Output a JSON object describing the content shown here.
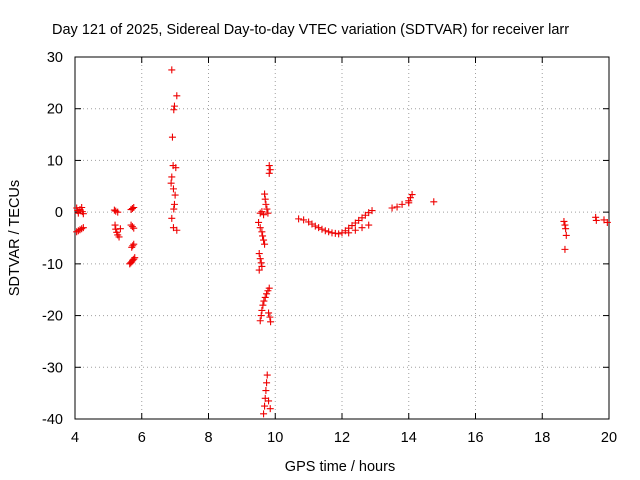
{
  "chart_data": {
    "type": "scatter",
    "title": "Day 121 of 2025, Sidereal Day-to-day VTEC variation (SDTVAR) for receiver larr",
    "xlabel": "GPS time / hours",
    "ylabel": "SDTVAR / TECUs",
    "xlim": [
      4,
      20
    ],
    "ylim": [
      -40,
      30
    ],
    "xticks": [
      4,
      6,
      8,
      10,
      12,
      14,
      16,
      18,
      20
    ],
    "yticks": [
      -40,
      -30,
      -20,
      -10,
      0,
      10,
      20,
      30
    ],
    "grid": true,
    "marker": "+",
    "color": "#ee0000",
    "series": [
      {
        "name": "SDTVAR",
        "points": [
          [
            4.05,
            0.8
          ],
          [
            4.08,
            0.3
          ],
          [
            4.1,
            -0.2
          ],
          [
            4.15,
            0.5
          ],
          [
            4.2,
            0.9
          ],
          [
            4.22,
            0.1
          ],
          [
            4.25,
            -0.3
          ],
          [
            4.05,
            -3.8
          ],
          [
            4.1,
            -3.6
          ],
          [
            4.15,
            -3.4
          ],
          [
            4.2,
            -3.2
          ],
          [
            4.25,
            -3.0
          ],
          [
            5.18,
            0.4
          ],
          [
            5.22,
            0.2
          ],
          [
            5.28,
            0.0
          ],
          [
            5.2,
            -2.5
          ],
          [
            5.22,
            -3.3
          ],
          [
            5.25,
            -3.9
          ],
          [
            5.28,
            -4.4
          ],
          [
            5.32,
            -4.8
          ],
          [
            5.36,
            -3.2
          ],
          [
            5.68,
            0.5
          ],
          [
            5.72,
            0.7
          ],
          [
            5.76,
            0.9
          ],
          [
            5.68,
            -2.5
          ],
          [
            5.72,
            -2.8
          ],
          [
            5.76,
            -3.1
          ],
          [
            5.7,
            -6.8
          ],
          [
            5.73,
            -6.5
          ],
          [
            5.76,
            -6.2
          ],
          [
            5.64,
            -10.0
          ],
          [
            5.67,
            -9.8
          ],
          [
            5.7,
            -9.6
          ],
          [
            5.73,
            -9.3
          ],
          [
            5.76,
            -9.1
          ],
          [
            5.79,
            -8.8
          ],
          [
            6.9,
            27.5
          ],
          [
            7.05,
            22.5
          ],
          [
            6.98,
            20.5
          ],
          [
            6.96,
            19.8
          ],
          [
            6.92,
            14.5
          ],
          [
            6.94,
            9.0
          ],
          [
            7.02,
            8.6
          ],
          [
            6.9,
            6.8
          ],
          [
            6.88,
            5.6
          ],
          [
            6.95,
            4.5
          ],
          [
            7.0,
            3.3
          ],
          [
            6.98,
            1.5
          ],
          [
            6.96,
            0.6
          ],
          [
            6.9,
            -1.2
          ],
          [
            6.95,
            -3.0
          ],
          [
            7.05,
            -3.5
          ],
          [
            9.55,
            -0.2
          ],
          [
            9.6,
            0.1
          ],
          [
            9.65,
            -0.5
          ],
          [
            9.5,
            -2.0
          ],
          [
            9.55,
            -3.0
          ],
          [
            9.6,
            -3.8
          ],
          [
            9.62,
            -4.6
          ],
          [
            9.65,
            -5.4
          ],
          [
            9.68,
            -6.2
          ],
          [
            9.52,
            -8.0
          ],
          [
            9.55,
            -9.0
          ],
          [
            9.58,
            -9.8
          ],
          [
            9.6,
            -10.5
          ],
          [
            9.52,
            -11.2
          ],
          [
            9.55,
            -21.0
          ],
          [
            9.58,
            -20.0
          ],
          [
            9.6,
            -19.0
          ],
          [
            9.63,
            -18.0
          ],
          [
            9.66,
            -17.2
          ],
          [
            9.7,
            -16.5
          ],
          [
            9.74,
            -15.8
          ],
          [
            9.78,
            -15.2
          ],
          [
            9.82,
            -14.7
          ],
          [
            9.68,
            3.5
          ],
          [
            9.7,
            2.5
          ],
          [
            9.72,
            1.5
          ],
          [
            9.75,
            0.6
          ],
          [
            9.78,
            -0.2
          ],
          [
            9.82,
            9.0
          ],
          [
            9.85,
            8.2
          ],
          [
            9.82,
            7.5
          ],
          [
            9.8,
            -19.5
          ],
          [
            9.84,
            -20.3
          ],
          [
            9.86,
            -21.2
          ],
          [
            9.65,
            -39.0
          ],
          [
            9.68,
            -37.5
          ],
          [
            9.7,
            -36.0
          ],
          [
            9.72,
            -34.5
          ],
          [
            9.74,
            -33.0
          ],
          [
            9.76,
            -31.5
          ],
          [
            9.8,
            -36.5
          ],
          [
            9.85,
            -38.0
          ],
          [
            10.7,
            -1.3
          ],
          [
            10.85,
            -1.5
          ],
          [
            11.0,
            -1.9
          ],
          [
            11.1,
            -2.3
          ],
          [
            11.2,
            -2.7
          ],
          [
            11.3,
            -3.0
          ],
          [
            11.4,
            -3.3
          ],
          [
            11.5,
            -3.6
          ],
          [
            11.6,
            -3.8
          ],
          [
            11.7,
            -4.0
          ],
          [
            11.8,
            -4.1
          ],
          [
            11.9,
            -4.2
          ],
          [
            12.0,
            -4.0
          ],
          [
            12.1,
            -3.6
          ],
          [
            12.2,
            -3.1
          ],
          [
            12.3,
            -2.6
          ],
          [
            12.4,
            -2.1
          ],
          [
            12.5,
            -1.6
          ],
          [
            12.6,
            -1.1
          ],
          [
            12.7,
            -0.6
          ],
          [
            12.8,
            -0.1
          ],
          [
            12.9,
            0.3
          ],
          [
            12.2,
            -4.0
          ],
          [
            12.4,
            -3.5
          ],
          [
            12.6,
            -3.0
          ],
          [
            12.8,
            -2.5
          ],
          [
            13.5,
            0.8
          ],
          [
            13.65,
            1.0
          ],
          [
            13.8,
            1.5
          ],
          [
            14.0,
            2.2
          ],
          [
            14.05,
            2.8
          ],
          [
            14.1,
            3.4
          ],
          [
            14.0,
            1.8
          ],
          [
            14.75,
            2.0
          ],
          [
            18.65,
            -1.8
          ],
          [
            18.68,
            -2.5
          ],
          [
            18.7,
            -3.2
          ],
          [
            18.72,
            -4.5
          ],
          [
            18.68,
            -7.2
          ],
          [
            19.6,
            -1.0
          ],
          [
            19.62,
            -1.6
          ],
          [
            19.85,
            -1.5
          ],
          [
            19.95,
            -2.0
          ]
        ]
      }
    ]
  }
}
